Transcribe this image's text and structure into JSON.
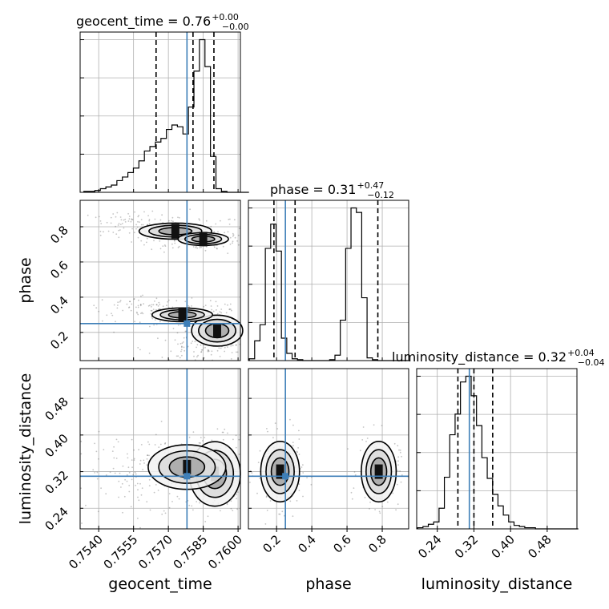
{
  "chart_data": {
    "type": "corner",
    "parameters": [
      "geocent_time",
      "phase",
      "luminosity_distance"
    ],
    "truth_color": "#3e7fb8",
    "titles": [
      {
        "main": "geocent_time = 0.76",
        "upper": "+0.00",
        "lower": "−0.00"
      },
      {
        "main": "phase = 0.31",
        "upper": "+0.47",
        "lower": "−0.12"
      },
      {
        "main": "luminosity_distance = 0.32",
        "upper": "+0.04",
        "lower": "−0.04"
      }
    ],
    "axis_labels": {
      "x": [
        "geocent_time",
        "phase",
        "luminosity_distance"
      ],
      "y": [
        "phase",
        "luminosity_distance"
      ]
    },
    "ranges": {
      "geocent_time": [
        0.7532,
        0.7601
      ],
      "phase": [
        0.04,
        0.95
      ],
      "luminosity_distance": [
        0.195,
        0.545
      ]
    },
    "ticks": {
      "geocent_time": {
        "values": [
          0.754,
          0.7555,
          0.757,
          0.7585,
          0.76
        ],
        "labels": [
          "0.7540",
          "0.7555",
          "0.7570",
          "0.7585",
          "0.7600"
        ]
      },
      "phase": {
        "values": [
          0.2,
          0.4,
          0.6,
          0.8
        ],
        "labels": [
          "0.2",
          "0.4",
          "0.6",
          "0.8"
        ]
      },
      "luminosity_distance": {
        "values": [
          0.24,
          0.32,
          0.4,
          0.48
        ],
        "labels": [
          "0.24",
          "0.32",
          "0.40",
          "0.48"
        ]
      }
    },
    "truths": {
      "geocent_time": 0.7578,
      "phase": 0.25,
      "luminosity_distance": 0.31
    },
    "quantiles": {
      "geocent_time": [
        0.75647,
        0.75806,
        0.75896
      ],
      "phase": [
        0.185,
        0.305,
        0.775
      ],
      "luminosity_distance": [
        0.285,
        0.32,
        0.361
      ]
    },
    "histograms": [
      {
        "param": "geocent_time",
        "edges_start": 0.75336,
        "bin_width": 0.000237,
        "counts": [
          1,
          1,
          2,
          4,
          6,
          8,
          13,
          17,
          22,
          27,
          35,
          46,
          51,
          56,
          60,
          70,
          75,
          73,
          65,
          95,
          135,
          170,
          140,
          40,
          4,
          1,
          0,
          0,
          0,
          0
        ]
      },
      {
        "param": "phase",
        "edges_start": 0.045,
        "bin_width": 0.0304,
        "counts": [
          2,
          22,
          40,
          125,
          152,
          122,
          25,
          8,
          2,
          1,
          0,
          0,
          0,
          0,
          0,
          1,
          6,
          45,
          125,
          170,
          165,
          70,
          3,
          1,
          0,
          0,
          0,
          0,
          0,
          0
        ]
      },
      {
        "param": "luminosity_distance",
        "edges_start": 0.197,
        "bin_width": 0.0117,
        "counts": [
          1,
          2,
          4,
          6,
          18,
          45,
          82,
          100,
          128,
          133,
          116,
          90,
          62,
          44,
          30,
          20,
          12,
          6,
          3,
          2,
          1,
          1,
          0,
          0,
          0,
          0,
          0,
          0,
          0,
          0
        ]
      }
    ],
    "density_2d": [
      {
        "x": "geocent_time",
        "y": "phase",
        "blobs": [
          [
            0.7573,
            0.775,
            0.0012,
            0.035,
            0.35
          ],
          [
            0.7585,
            0.73,
            0.0009,
            0.03,
            0.3
          ],
          [
            0.7591,
            0.21,
            0.0005,
            0.04,
            1.0
          ],
          [
            0.7576,
            0.3,
            0.001,
            0.03,
            0.35
          ],
          [
            0.7584,
            0.11,
            0.0009,
            0.03,
            0.25
          ],
          [
            0.7553,
            0.82,
            0.001,
            0.03,
            0.12
          ],
          [
            0.756,
            0.35,
            0.0009,
            0.025,
            0.12
          ]
        ]
      },
      {
        "x": "geocent_time",
        "y": "luminosity_distance",
        "blobs": [
          [
            0.759,
            0.315,
            0.0005,
            0.032,
            1.0
          ],
          [
            0.7578,
            0.33,
            0.0012,
            0.035,
            0.4
          ],
          [
            0.7565,
            0.32,
            0.0012,
            0.03,
            0.2
          ],
          [
            0.7554,
            0.31,
            0.0012,
            0.028,
            0.12
          ]
        ]
      },
      {
        "x": "phase",
        "y": "luminosity_distance",
        "blobs": [
          [
            0.22,
            0.32,
            0.05,
            0.03,
            1.0
          ],
          [
            0.78,
            0.32,
            0.045,
            0.03,
            1.0
          ]
        ]
      }
    ]
  }
}
